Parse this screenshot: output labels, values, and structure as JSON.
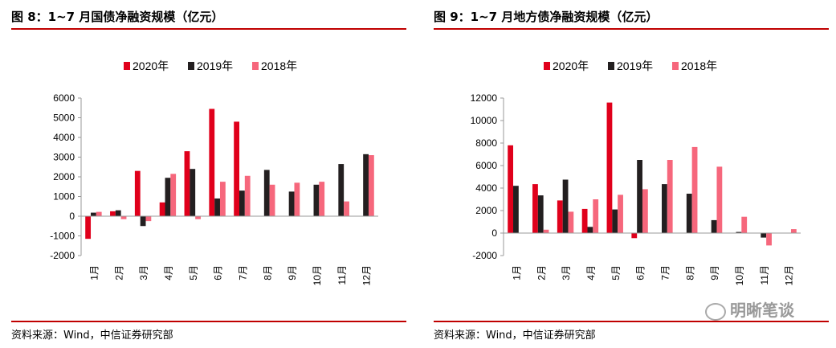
{
  "colors": {
    "s2020": "#e0001b",
    "s2019": "#231f20",
    "s2018": "#f6677c",
    "rule": "#c00000"
  },
  "charts": [
    {
      "title": "图 8：1~7 月国债净融资规模（亿元）",
      "source": "资料来源：Wind，中信证券研究部",
      "chart_data": {
        "type": "bar",
        "categories": [
          "1月",
          "2月",
          "3月",
          "4月",
          "5月",
          "6月",
          "7月",
          "8月",
          "9月",
          "10月",
          "11月",
          "12月"
        ],
        "series": [
          {
            "name": "2020年",
            "values": [
              -1150,
              250,
              2300,
              700,
              3300,
              5450,
              4800,
              null,
              null,
              null,
              null,
              null
            ]
          },
          {
            "name": "2019年",
            "values": [
              180,
              300,
              -500,
              1950,
              2400,
              900,
              1300,
              2350,
              1250,
              1600,
              2650,
              3150
            ]
          },
          {
            "name": "2018年",
            "values": [
              220,
              -150,
              -250,
              2150,
              -150,
              1750,
              2050,
              1600,
              1700,
              1750,
              750,
              3100
            ]
          }
        ],
        "ylim": [
          -2000,
          6000
        ],
        "yticks": [
          -2000,
          -1000,
          0,
          1000,
          2000,
          3000,
          4000,
          5000,
          6000
        ],
        "legend": "top",
        "grid": false
      }
    },
    {
      "title": "图 9：1~7 月地方债净融资规模（亿元）",
      "source": "资料来源：Wind，中信证券研究部",
      "chart_data": {
        "type": "bar",
        "categories": [
          "1月",
          "2月",
          "3月",
          "4月",
          "5月",
          "6月",
          "7月",
          "8月",
          "9月",
          "10月",
          "11月",
          "12月"
        ],
        "series": [
          {
            "name": "2020年",
            "values": [
              7800,
              4350,
              2900,
              2150,
              11600,
              -450,
              null,
              null,
              null,
              null,
              null,
              null
            ]
          },
          {
            "name": "2019年",
            "values": [
              4200,
              3350,
              4750,
              550,
              2100,
              6500,
              4350,
              3500,
              1150,
              100,
              -400,
              null
            ]
          },
          {
            "name": "2018年",
            "values": [
              0,
              300,
              1900,
              3000,
              3400,
              3900,
              6500,
              7650,
              5900,
              1450,
              -1100,
              350
            ]
          }
        ],
        "ylim": [
          -2000,
          12000
        ],
        "yticks": [
          -2000,
          0,
          2000,
          4000,
          6000,
          8000,
          10000,
          12000
        ],
        "legend": "top",
        "grid": false
      }
    }
  ],
  "watermark": "明晰笔谈"
}
